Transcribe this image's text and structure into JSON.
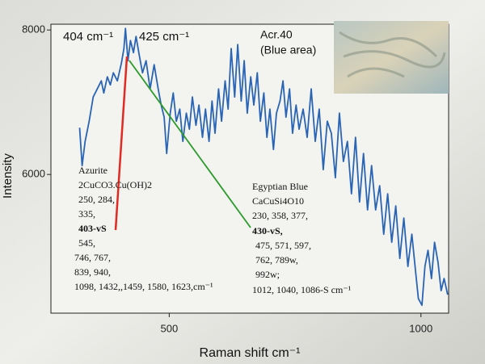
{
  "chart_data": {
    "type": "line",
    "x_label": "Raman shift cm⁻¹",
    "y_label": "Intensity",
    "annotations": {
      "peak_left": "404 cm⁻¹",
      "peak_right": "425 cm⁻¹",
      "sample": [
        "Acr.40",
        "(Blue area)"
      ],
      "azurite": [
        "Azurite",
        "2CuCO3.Cu(OH)2",
        "250, 284,",
        "335,",
        "403-vS",
        "545,",
        "746, 767,",
        "839, 940,",
        "1098, 1432,,1459, 1580, 1623,cm⁻¹"
      ],
      "egyptian_blue": [
        "Egyptian Blue",
        "CaCuSi4O10",
        "230, 358, 377,",
        "430-vS,",
        "475, 571, 597,",
        "762, 789w,",
        "992w;",
        "1012, 1040, 1086-S cm⁻¹"
      ]
    },
    "xlim": [
      265,
      1055
    ],
    "xticks": [
      500,
      1000
    ],
    "ylim": [
      4080,
      8080
    ],
    "yticks": [
      6000,
      8000
    ],
    "series": [
      {
        "color": "#2a64b4",
        "x": [
          322,
          327,
          333,
          341,
          349,
          357,
          365,
          370,
          377,
          383,
          389,
          397,
          405,
          410,
          413,
          418,
          423,
          429,
          434,
          441,
          447,
          454,
          462,
          470,
          478,
          484,
          490,
          495,
          502,
          508,
          514,
          521,
          527,
          534,
          540,
          546,
          553,
          559,
          566,
          572,
          579,
          585,
          591,
          598,
          604,
          611,
          617,
          623,
          630,
          636,
          643,
          649,
          655,
          662,
          668,
          675,
          681,
          688,
          694,
          700,
          707,
          713,
          720,
          726,
          732,
          739,
          745,
          752,
          758,
          766,
          774,
          782,
          790,
          798,
          806,
          814,
          822,
          830,
          838,
          846,
          854,
          862,
          870,
          878,
          886,
          894,
          902,
          910,
          918,
          926,
          934,
          942,
          950,
          958,
          966,
          974,
          982,
          990,
          995,
          1002,
          1008,
          1014,
          1021,
          1027,
          1034,
          1040,
          1046,
          1053
        ],
        "values": [
          6648,
          6123,
          6458,
          6737,
          7072,
          7184,
          7296,
          7128,
          7352,
          7240,
          7407,
          7296,
          7541,
          7743,
          8022,
          7575,
          7854,
          7687,
          7910,
          7631,
          7407,
          7575,
          7184,
          7519,
          7184,
          6961,
          6793,
          6290,
          6849,
          7128,
          6737,
          6905,
          6458,
          6849,
          6626,
          7072,
          6681,
          6961,
          6514,
          6905,
          6458,
          7016,
          6570,
          7184,
          6737,
          7296,
          6905,
          7743,
          7072,
          7798,
          7016,
          7575,
          6849,
          7352,
          6961,
          7407,
          6737,
          7128,
          6514,
          6905,
          6346,
          6849,
          7016,
          7296,
          6793,
          7184,
          6570,
          6961,
          6626,
          6905,
          6514,
          7184,
          6458,
          6905,
          6067,
          6737,
          6570,
          5955,
          6849,
          6179,
          6458,
          5732,
          6514,
          5620,
          6290,
          5509,
          6123,
          5509,
          5844,
          5173,
          5732,
          5062,
          5564,
          4838,
          5397,
          4727,
          5173,
          4615,
          4280,
          4190,
          4727,
          4950,
          4559,
          5062,
          4782,
          4392,
          4559,
          4336
        ]
      }
    ]
  }
}
